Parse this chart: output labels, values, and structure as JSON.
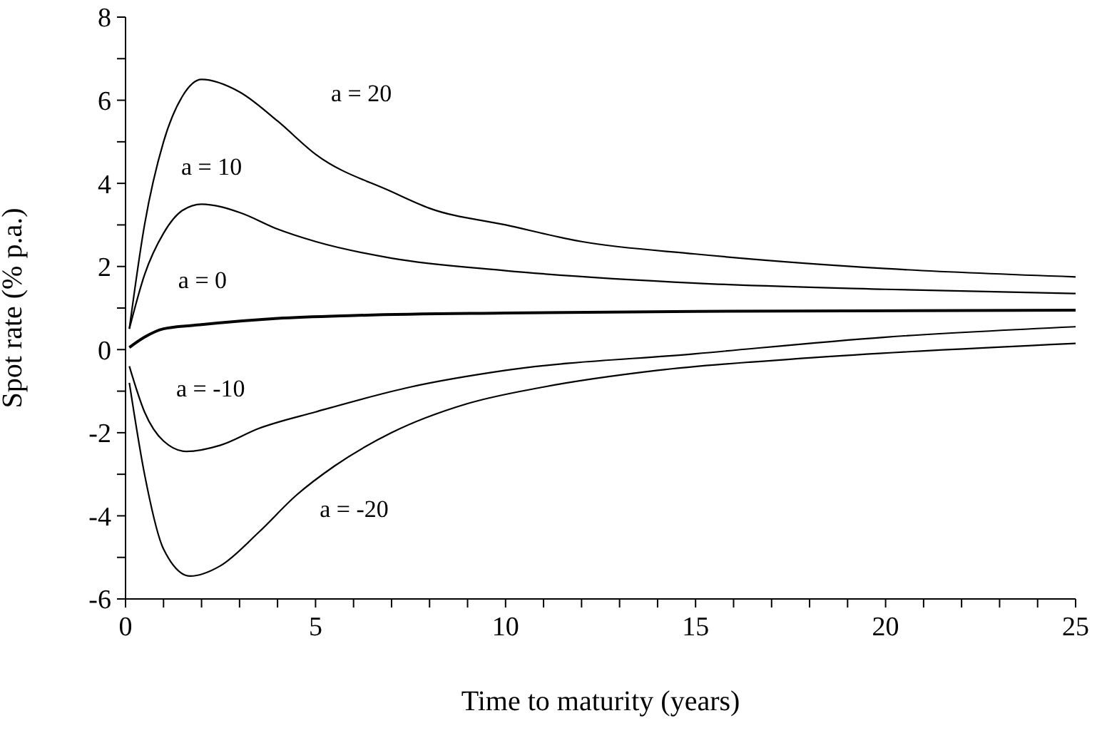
{
  "chart_data": {
    "type": "line",
    "xlabel": "Time to maturity (years)",
    "ylabel": "Spot rate (% p.a.)",
    "xlim": [
      0,
      25
    ],
    "ylim": [
      -6,
      8
    ],
    "xticks": [
      0,
      {
        "value": 1,
        "label": null
      },
      {
        "value": 2,
        "label": null
      },
      {
        "value": 3,
        "label": null
      },
      {
        "value": 4,
        "label": null
      },
      5,
      {
        "value": 6,
        "label": null
      },
      {
        "value": 7,
        "label": null
      },
      {
        "value": 8,
        "label": null
      },
      {
        "value": 9,
        "label": null
      },
      10,
      {
        "value": 11,
        "label": null
      },
      {
        "value": 12,
        "label": null
      },
      {
        "value": 13,
        "label": null
      },
      {
        "value": 14,
        "label": null
      },
      15,
      {
        "value": 16,
        "label": null
      },
      {
        "value": 17,
        "label": null
      },
      {
        "value": 18,
        "label": null
      },
      {
        "value": 19,
        "label": null
      },
      20,
      {
        "value": 21,
        "label": null
      },
      {
        "value": 22,
        "label": null
      },
      {
        "value": 23,
        "label": null
      },
      {
        "value": 24,
        "label": null
      },
      25
    ],
    "yticks": [
      -6,
      {
        "value": -5,
        "label": null
      },
      -4,
      {
        "value": -3,
        "label": null
      },
      -2,
      {
        "value": -1,
        "label": null
      },
      0,
      {
        "value": 1,
        "label": null
      },
      2,
      {
        "value": 3,
        "label": null
      },
      4,
      {
        "value": 5,
        "label": null
      },
      6,
      {
        "value": 7,
        "label": null
      },
      8
    ],
    "grid": false,
    "legend": false,
    "marker": "none",
    "line_style": "solid",
    "series": [
      {
        "name": "a = 20",
        "color": "#000000",
        "x": [
          0.1,
          0.5,
          1,
          1.5,
          2,
          3,
          4,
          5,
          7,
          8,
          10,
          12,
          15,
          20,
          25
        ],
        "values": [
          0.5,
          3.0,
          5.0,
          6.1,
          6.5,
          6.2,
          5.5,
          4.7,
          3.8,
          3.4,
          3.0,
          2.6,
          2.3,
          1.95,
          1.75
        ]
      },
      {
        "name": "a = 10",
        "color": "#000000",
        "x": [
          0.1,
          0.5,
          1,
          1.5,
          2,
          3,
          4,
          5,
          7,
          10,
          15,
          20,
          25
        ],
        "values": [
          0.5,
          1.8,
          2.8,
          3.35,
          3.5,
          3.3,
          2.9,
          2.6,
          2.2,
          1.9,
          1.6,
          1.45,
          1.35
        ]
      },
      {
        "name": "a = 0",
        "color": "#000000",
        "x": [
          0.1,
          0.5,
          1,
          2,
          4,
          6,
          10,
          15,
          25
        ],
        "values": [
          0.05,
          0.3,
          0.5,
          0.6,
          0.75,
          0.82,
          0.88,
          0.92,
          0.95
        ]
      },
      {
        "name": "a = -10",
        "color": "#000000",
        "x": [
          0.1,
          0.5,
          1,
          1.6,
          2.5,
          3.5,
          5,
          7.5,
          10,
          15,
          20,
          25
        ],
        "values": [
          -0.4,
          -1.5,
          -2.2,
          -2.45,
          -2.3,
          -1.9,
          -1.5,
          -0.9,
          -0.5,
          -0.1,
          0.3,
          0.55
        ]
      },
      {
        "name": "a = -20",
        "color": "#000000",
        "x": [
          0.1,
          0.5,
          1,
          1.7,
          2.5,
          3.5,
          4.5,
          5.5,
          7,
          9,
          11,
          14,
          18,
          25
        ],
        "values": [
          -0.8,
          -3.0,
          -4.8,
          -5.45,
          -5.2,
          -4.4,
          -3.5,
          -2.8,
          -2.0,
          -1.3,
          -0.9,
          -0.5,
          -0.2,
          0.15
        ]
      }
    ]
  }
}
